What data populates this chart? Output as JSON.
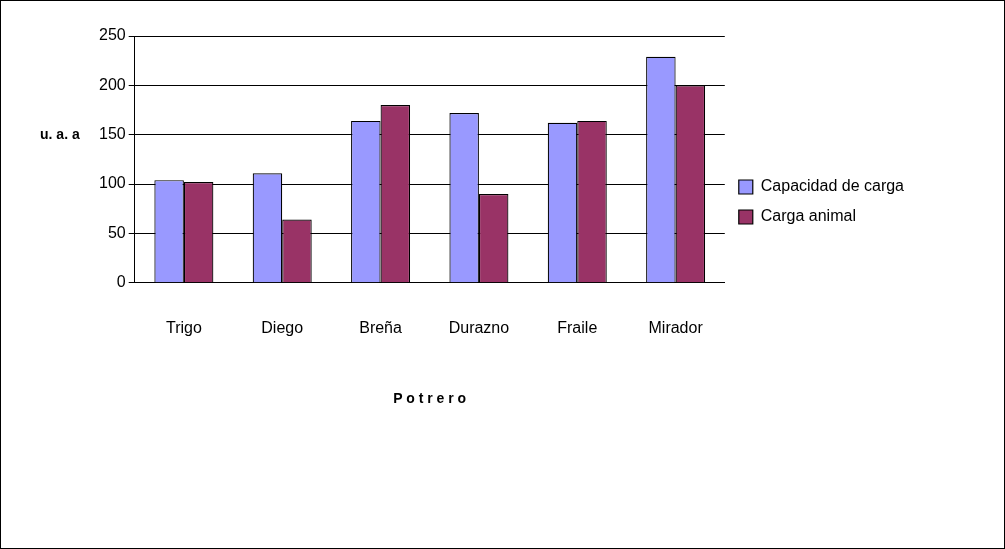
{
  "chart_data": {
    "type": "bar",
    "xlabel": "P o t r e r o",
    "ylabel": "u. a. a",
    "categories": [
      "Trigo",
      "Diego",
      "Breña",
      "Durazno",
      "Fraile",
      "Mirador"
    ],
    "series": [
      {
        "name": "Capacidad de carga",
        "color": "#9999ff",
        "values": [
          104,
          111,
          164,
          172,
          162,
          229
        ]
      },
      {
        "name": "Carga animal",
        "color": "#993366",
        "values": [
          102,
          64,
          180,
          90,
          164,
          200
        ]
      }
    ],
    "ylim": [
      0,
      250
    ],
    "yticks": [
      0,
      50,
      100,
      150,
      200,
      250
    ],
    "grid": "y",
    "legend": "right"
  }
}
